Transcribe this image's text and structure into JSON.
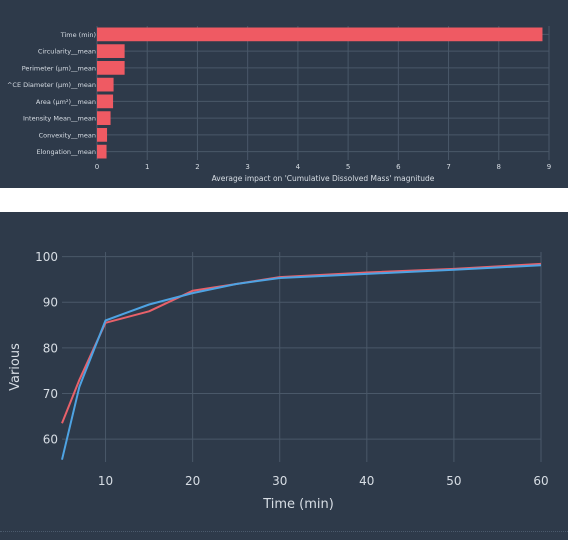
{
  "chart_data": [
    {
      "type": "bar",
      "orientation": "horizontal",
      "title": "",
      "xlabel": "Average impact on 'Cumulative Dissolved Mass' magnitude",
      "ylabel": "",
      "categories": [
        "Time (min)",
        "Circularity__mean",
        "Perimeter (µm)__mean",
        "^CE Diameter (µm)__mean",
        "Area (µm²)__mean",
        "Intensity Mean__mean",
        "Convexity__mean",
        "Elongation__mean"
      ],
      "values": [
        8.87,
        0.55,
        0.55,
        0.33,
        0.32,
        0.27,
        0.2,
        0.19
      ],
      "xlim": [
        0,
        9
      ],
      "xticks": [
        "0",
        "1",
        "2",
        "3",
        "4",
        "5",
        "6",
        "7",
        "8",
        "9"
      ],
      "grid": true,
      "bar_color": "#ef5a63"
    },
    {
      "type": "line",
      "title": "",
      "xlabel": "Time (min)",
      "ylabel": "Various",
      "xlim": [
        5,
        60
      ],
      "ylim": [
        55,
        101
      ],
      "xticks": [
        "10",
        "20",
        "30",
        "40",
        "50",
        "60"
      ],
      "yticks": [
        "60",
        "70",
        "80",
        "90",
        "100"
      ],
      "grid": true,
      "series": [
        {
          "color": "#e8616a",
          "x": [
            5,
            7,
            10,
            15,
            20,
            25,
            30,
            40,
            50,
            60
          ],
          "y": [
            63.5,
            73,
            85.5,
            88,
            92.5,
            94,
            95.5,
            96.5,
            97.3,
            98.4
          ]
        },
        {
          "color": "#4ea3e3",
          "x": [
            5,
            7,
            10,
            15,
            20,
            25,
            30,
            40,
            50,
            60
          ],
          "y": [
            55.5,
            71.5,
            86,
            89.5,
            92,
            94,
            95.3,
            96.2,
            97.1,
            98.1
          ]
        }
      ]
    }
  ]
}
